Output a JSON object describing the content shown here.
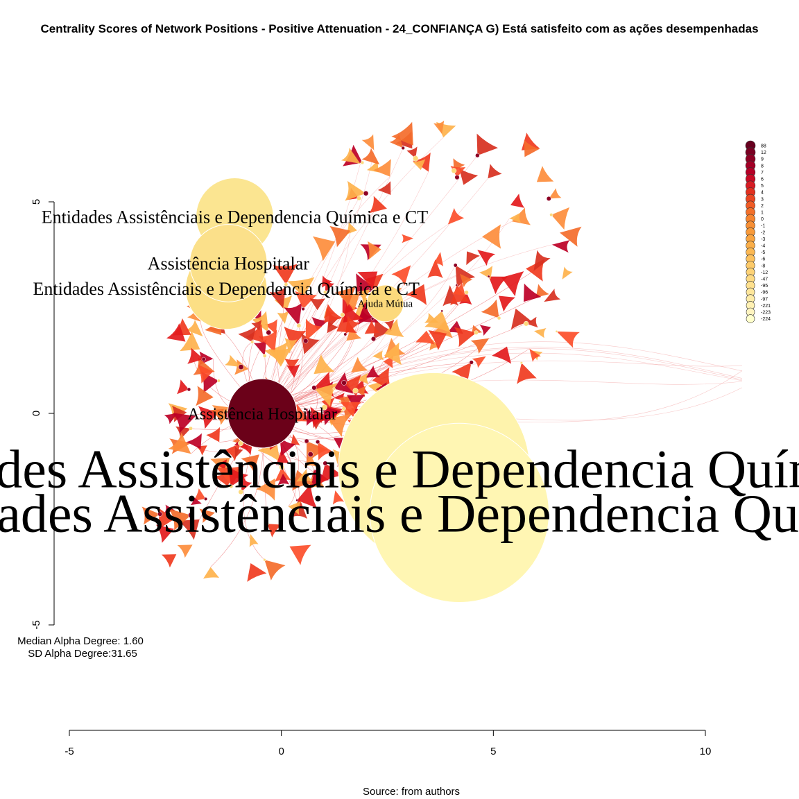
{
  "chart_data": {
    "type": "scatter",
    "title": "Centrality Scores of Network Positions - Positive Attenuation - 24_CONFIANÇA G) Está satisfeito com as ações desempenhadas",
    "xlim": [
      -5,
      10
    ],
    "ylim": [
      -5,
      5
    ],
    "x_ticks": [
      "-5",
      "0",
      "5",
      "10"
    ],
    "y_ticks": [
      "-5",
      "0",
      "5"
    ],
    "labeled_nodes": [
      {
        "label": "Entidades Assistênciais e Dependencia Química e CT",
        "x": -1.1,
        "y": 4.65,
        "r": 0.95,
        "color": "#fbe591",
        "text": 26
      },
      {
        "label": "Assistência Hospitalar",
        "x": -1.25,
        "y": 3.55,
        "r": 0.95,
        "color": "#fbe08a",
        "text": 26
      },
      {
        "label": "Entidades Assistênciais e Dependencia Química e CT",
        "x": -1.3,
        "y": 2.95,
        "r": 1.0,
        "color": "#fcdf85",
        "text": 26
      },
      {
        "label": "Ajuda Mútua",
        "x": 2.45,
        "y": 2.6,
        "r": 0.45,
        "color": "#fcd97c",
        "text": 15
      },
      {
        "label": "Assistência Hospitalar",
        "x": -0.45,
        "y": 0.0,
        "r": 0.85,
        "color": "#6b0119",
        "text": 24
      },
      {
        "label": "Entidades Assistênciais e Dependencia Química e CT",
        "x": 3.6,
        "y": -1.3,
        "r": 2.35,
        "color": "#fef3ac",
        "text": 78
      },
      {
        "label": "Entidades Assistênciais e Dependencia Química e CT",
        "x": 4.2,
        "y": -2.35,
        "r": 2.2,
        "color": "#fff6b3",
        "text": 78
      }
    ],
    "legend": {
      "values": [
        "88",
        "12",
        "9",
        "8",
        "7",
        "6",
        "5",
        "4",
        "3",
        "2",
        "1",
        "0",
        "-1",
        "-2",
        "-3",
        "-4",
        "-5",
        "-6",
        "-8",
        "-12",
        "-47",
        "-95",
        "-96",
        "-97",
        "-221",
        "-223",
        "-224"
      ],
      "colors": [
        "#67001f",
        "#7a0022",
        "#8e0024",
        "#a30026",
        "#b50026",
        "#c90a25",
        "#d61c24",
        "#e2301f",
        "#ea4522",
        "#f05b25",
        "#f3702a",
        "#f6842f",
        "#f78f35",
        "#f89a3a",
        "#f9a440",
        "#faae49",
        "#fbb853",
        "#fcc15e",
        "#fcca6a",
        "#fdd276",
        "#fdd982",
        "#fee08e",
        "#fee69b",
        "#feeba7",
        "#fff0b3",
        "#fff4c0",
        "#ffffcc"
      ]
    }
  },
  "stats": {
    "median": "Median Alpha Degree: 1.60",
    "sd": "SD Alpha Degree:31.65"
  },
  "source": "Source: from authors"
}
